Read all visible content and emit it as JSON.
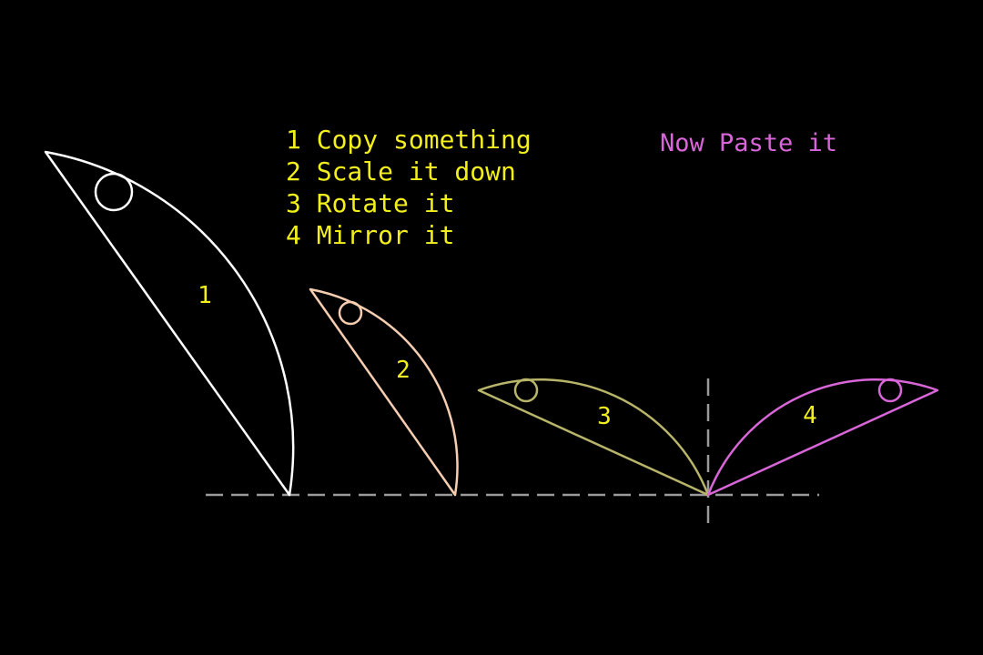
{
  "steps": [
    "1 Copy something",
    "2 Scale it down",
    "3 Rotate it",
    "4 Mirror it"
  ],
  "paste_prompt": "Now Paste it",
  "shape_labels": [
    "1",
    "2",
    "3",
    "4"
  ],
  "colors": {
    "background": "#000000",
    "steps_text": "#f2ef1d",
    "paste_text": "#d866d8",
    "shape_1": "#ffffff",
    "shape_2": "#f6cdb0",
    "shape_3": "#b8b56a",
    "shape_4": "#d866d8",
    "guide": "#9a9a9a"
  }
}
